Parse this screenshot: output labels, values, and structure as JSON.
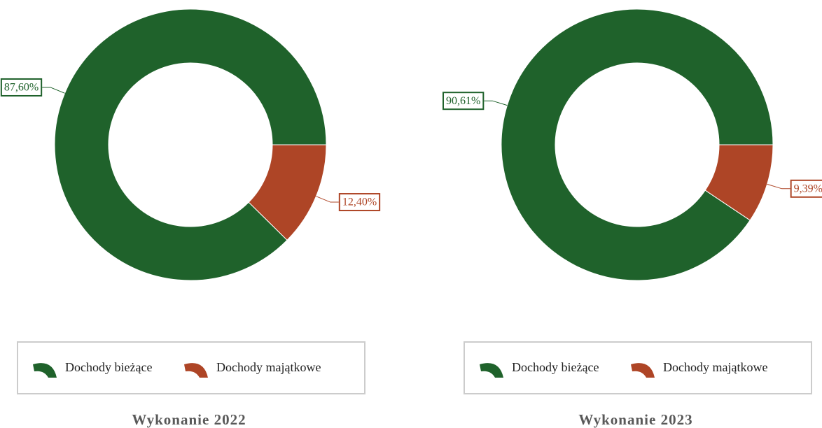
{
  "chart_data": [
    {
      "type": "donut",
      "title": "Wykonanie 2022",
      "categories": [
        "Dochody bieżące",
        "Dochody majątkowe"
      ],
      "values": [
        87.6,
        12.4
      ],
      "value_labels": [
        "87,60%",
        "12,40%"
      ],
      "colors": [
        "#1f622b",
        "#ae4526"
      ]
    },
    {
      "type": "donut",
      "title": "Wykonanie 2023",
      "categories": [
        "Dochody bieżące",
        "Dochody majątkowe"
      ],
      "values": [
        90.61,
        9.39
      ],
      "value_labels": [
        "90,61%",
        "9,39%"
      ],
      "colors": [
        "#1f622b",
        "#ae4526"
      ]
    }
  ]
}
